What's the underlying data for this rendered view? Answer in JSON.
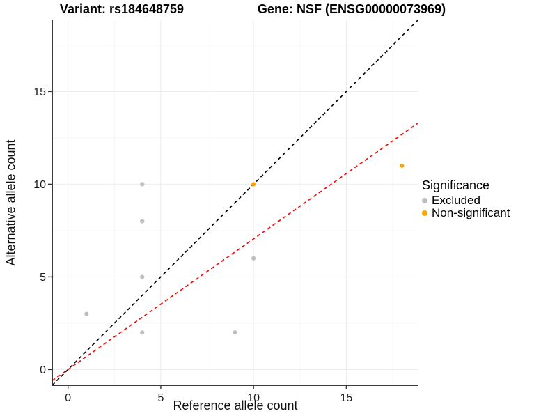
{
  "header": {
    "variant_title": "Variant: rs184648759",
    "gene_title": "Gene: NSF (ENSG00000073969)"
  },
  "chart_data": {
    "type": "scatter",
    "titles": [
      "Variant: rs184648759",
      "Gene: NSF (ENSG00000073969)"
    ],
    "xlabel": "Reference allele count",
    "ylabel": "Alternative allele count",
    "xlim": [
      -0.85,
      18.85
    ],
    "ylim": [
      -0.85,
      18.85
    ],
    "x_ticks": [
      0,
      5,
      10,
      15
    ],
    "y_ticks": [
      0,
      5,
      10,
      15
    ],
    "minor_gridlines": [
      2.5,
      7.5,
      12.5,
      17.5
    ],
    "grid": true,
    "grid_color": "#ebebeb",
    "minor_grid_color": "#f5f5f5",
    "legend_title": "Significance",
    "legend_position": "right",
    "series": [
      {
        "name": "Excluded",
        "color": "#bebebe",
        "points": [
          [
            1,
            3
          ],
          [
            4,
            2
          ],
          [
            4,
            5
          ],
          [
            4,
            8
          ],
          [
            4,
            10
          ],
          [
            9,
            2
          ],
          [
            10,
            6
          ]
        ]
      },
      {
        "name": "Non-significant",
        "color": "#ffa500",
        "points": [
          [
            10,
            10
          ],
          [
            18,
            11
          ]
        ]
      }
    ],
    "reference_lines": [
      {
        "name": "identity",
        "style": "dashed",
        "color": "#000000",
        "slope": 1,
        "intercept": 0
      },
      {
        "name": "expected-ratio",
        "style": "dashed",
        "color": "#ff0000",
        "slope": 0.705,
        "intercept": 0
      }
    ]
  }
}
